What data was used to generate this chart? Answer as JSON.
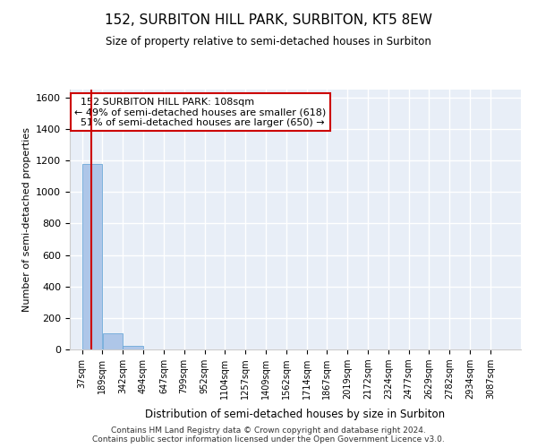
{
  "title": "152, SURBITON HILL PARK, SURBITON, KT5 8EW",
  "subtitle": "Size of property relative to semi-detached houses in Surbiton",
  "xlabel": "Distribution of semi-detached houses by size in Surbiton",
  "ylabel": "Number of semi-detached properties",
  "bin_edges": [
    37,
    189,
    342,
    494,
    647,
    799,
    952,
    1104,
    1257,
    1409,
    1562,
    1714,
    1867,
    2019,
    2172,
    2324,
    2477,
    2629,
    2782,
    2934,
    3087
  ],
  "bar_heights": [
    1180,
    100,
    20,
    0,
    0,
    0,
    0,
    0,
    0,
    0,
    0,
    0,
    0,
    0,
    0,
    0,
    0,
    0,
    0,
    0
  ],
  "bar_color": "#aec6e8",
  "bar_edge_color": "#5a9fd4",
  "property_size": 108,
  "property_label": "152 SURBITON HILL PARK: 108sqm",
  "smaller_pct": "49%",
  "smaller_count": 618,
  "larger_pct": "51%",
  "larger_count": 650,
  "red_line_color": "#cc0000",
  "annotation_box_color": "#cc0000",
  "ylim": [
    0,
    1650
  ],
  "yticks": [
    0,
    200,
    400,
    600,
    800,
    1000,
    1200,
    1400,
    1600
  ],
  "background_color": "#e8eef7",
  "grid_color": "#ffffff",
  "footer_line1": "Contains HM Land Registry data © Crown copyright and database right 2024.",
  "footer_line2": "Contains public sector information licensed under the Open Government Licence v3.0."
}
